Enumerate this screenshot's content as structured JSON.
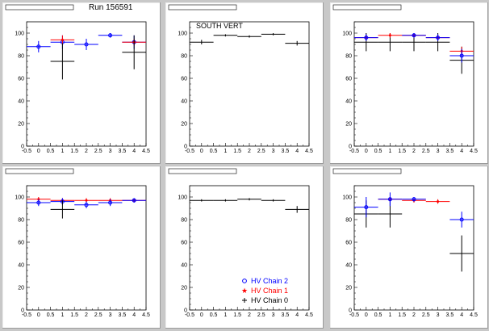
{
  "run_label": "Run 156591",
  "legend": {
    "items": [
      {
        "label": "HV Chain 2",
        "color": "#0000ff",
        "marker": "circle"
      },
      {
        "label": "HV Chain 1",
        "color": "#ff0000",
        "marker": "star"
      },
      {
        "label": "HV Chain 0",
        "color": "#000000",
        "marker": "cross"
      }
    ]
  },
  "chart_data": [
    {
      "type": "scatter",
      "title": "",
      "inner_title": "",
      "x_ticks": [
        "-0.5",
        "0",
        "0.5",
        "1",
        "1.5",
        "2",
        "2.5",
        "3",
        "3.5",
        "4",
        "4.5"
      ],
      "y_ticks": [
        "0",
        "20",
        "40",
        "60",
        "80",
        "100"
      ],
      "xlim": [
        -0.5,
        4.5
      ],
      "ylim": [
        0,
        110
      ],
      "series": [
        {
          "color": "#0000ff",
          "points": [
            {
              "x": 0,
              "y": 88,
              "err": 5
            },
            {
              "x": 1,
              "y": 92,
              "err": 6
            },
            {
              "x": 2,
              "y": 90,
              "err": 5
            },
            {
              "x": 3,
              "y": 98,
              "err": 2
            },
            {
              "x": 4,
              "y": 92,
              "err": 6
            }
          ]
        },
        {
          "color": "#ff0000",
          "points": [
            {
              "x": 1,
              "y": 94,
              "err": 4
            },
            {
              "x": 4,
              "y": 92,
              "err": 3
            }
          ]
        },
        {
          "color": "#000000",
          "points": [
            {
              "x": 1,
              "y": 75,
              "err": 16
            },
            {
              "x": 4,
              "y": 83,
              "err": 15
            }
          ]
        }
      ]
    },
    {
      "type": "scatter",
      "title": "",
      "inner_title": "SOUTH VERT",
      "x_ticks": [
        "-0.5",
        "0",
        "0.5",
        "1",
        "1.5",
        "2",
        "2.5",
        "3",
        "3.5",
        "4",
        "4.5"
      ],
      "y_ticks": [
        "0",
        "20",
        "40",
        "60",
        "80",
        "100"
      ],
      "xlim": [
        -0.5,
        4.5
      ],
      "ylim": [
        0,
        110
      ],
      "series": [
        {
          "color": "#000000",
          "points": [
            {
              "x": 0,
              "y": 92,
              "err": 2
            },
            {
              "x": 1,
              "y": 98,
              "err": 1
            },
            {
              "x": 2,
              "y": 97,
              "err": 1
            },
            {
              "x": 3,
              "y": 99,
              "err": 1
            },
            {
              "x": 4,
              "y": 91,
              "err": 2
            }
          ]
        }
      ]
    },
    {
      "type": "scatter",
      "title": "",
      "inner_title": "",
      "x_ticks": [
        "-0.5",
        "0",
        "0.5",
        "1",
        "1.5",
        "2",
        "2.5",
        "3",
        "3.5",
        "4",
        "4.5"
      ],
      "y_ticks": [
        "0",
        "20",
        "40",
        "60",
        "80",
        "100"
      ],
      "xlim": [
        -0.5,
        4.5
      ],
      "ylim": [
        0,
        110
      ],
      "series": [
        {
          "color": "#000000",
          "points": [
            {
              "x": 0,
              "y": 92,
              "err": 8
            },
            {
              "x": 1,
              "y": 92,
              "err": 8
            },
            {
              "x": 2,
              "y": 92,
              "err": 8
            },
            {
              "x": 3,
              "y": 92,
              "err": 8
            },
            {
              "x": 4,
              "y": 76,
              "err": 12
            }
          ]
        },
        {
          "color": "#ff0000",
          "points": [
            {
              "x": 0,
              "y": 96,
              "err": 2
            },
            {
              "x": 1,
              "y": 98,
              "err": 2
            },
            {
              "x": 2,
              "y": 98,
              "err": 2
            },
            {
              "x": 3,
              "y": 96,
              "err": 2
            },
            {
              "x": 4,
              "y": 84,
              "err": 4
            }
          ]
        },
        {
          "color": "#0000ff",
          "points": [
            {
              "x": 0,
              "y": 96,
              "err": 3
            },
            {
              "x": 2,
              "y": 98,
              "err": 2
            },
            {
              "x": 3,
              "y": 96,
              "err": 3
            },
            {
              "x": 4,
              "y": 80,
              "err": 6
            }
          ]
        }
      ]
    },
    {
      "type": "scatter",
      "title": "",
      "inner_title": "",
      "x_ticks": [
        "-0.5",
        "0",
        "0.5",
        "1",
        "1.5",
        "2",
        "2.5",
        "3",
        "3.5",
        "4",
        "4.5"
      ],
      "y_ticks": [
        "0",
        "20",
        "40",
        "60",
        "80",
        "100"
      ],
      "xlim": [
        -0.5,
        4.5
      ],
      "ylim": [
        0,
        110
      ],
      "series": [
        {
          "color": "#ff0000",
          "points": [
            {
              "x": 0,
              "y": 98,
              "err": 2
            },
            {
              "x": 1,
              "y": 97,
              "err": 2
            },
            {
              "x": 2,
              "y": 97,
              "err": 2
            },
            {
              "x": 3,
              "y": 97,
              "err": 2
            },
            {
              "x": 4,
              "y": 97,
              "err": 1
            }
          ]
        },
        {
          "color": "#0000ff",
          "points": [
            {
              "x": 0,
              "y": 95,
              "err": 3
            },
            {
              "x": 1,
              "y": 96,
              "err": 3
            },
            {
              "x": 2,
              "y": 93,
              "err": 3
            },
            {
              "x": 3,
              "y": 95,
              "err": 3
            },
            {
              "x": 4,
              "y": 97,
              "err": 2
            }
          ]
        },
        {
          "color": "#000000",
          "points": [
            {
              "x": 1,
              "y": 89,
              "err": 8
            }
          ]
        }
      ]
    },
    {
      "type": "scatter",
      "title": "",
      "inner_title": "",
      "x_ticks": [
        "-0.5",
        "0",
        "0.5",
        "1",
        "1.5",
        "2",
        "2.5",
        "3",
        "3.5",
        "4",
        "4.5"
      ],
      "y_ticks": [
        "0",
        "20",
        "40",
        "60",
        "80",
        "100"
      ],
      "xlim": [
        -0.5,
        4.5
      ],
      "ylim": [
        0,
        110
      ],
      "series": [
        {
          "color": "#000000",
          "points": [
            {
              "x": 0,
              "y": 97,
              "err": 1
            },
            {
              "x": 1,
              "y": 97,
              "err": 1
            },
            {
              "x": 2,
              "y": 98,
              "err": 1
            },
            {
              "x": 3,
              "y": 97,
              "err": 1
            },
            {
              "x": 4,
              "y": 89,
              "err": 3
            }
          ]
        }
      ]
    },
    {
      "type": "scatter",
      "title": "",
      "inner_title": "",
      "x_ticks": [
        "-0.5",
        "0",
        "0.5",
        "1",
        "1.5",
        "2",
        "2.5",
        "3",
        "3.5",
        "4",
        "4.5"
      ],
      "y_ticks": [
        "0",
        "20",
        "40",
        "60",
        "80",
        "100"
      ],
      "xlim": [
        -0.5,
        4.5
      ],
      "ylim": [
        0,
        110
      ],
      "series": [
        {
          "color": "#000000",
          "points": [
            {
              "x": 0,
              "y": 85,
              "err": 12
            },
            {
              "x": 1,
              "y": 85,
              "err": 12
            },
            {
              "x": 4,
              "y": 50,
              "err": 16
            }
          ]
        },
        {
          "color": "#ff0000",
          "points": [
            {
              "x": 1,
              "y": 98,
              "err": 2
            },
            {
              "x": 2,
              "y": 97,
              "err": 2
            },
            {
              "x": 3,
              "y": 96,
              "err": 2
            }
          ]
        },
        {
          "color": "#0000ff",
          "points": [
            {
              "x": 0,
              "y": 91,
              "err": 9
            },
            {
              "x": 1,
              "y": 98,
              "err": 6
            },
            {
              "x": 2,
              "y": 98,
              "err": 2
            },
            {
              "x": 4,
              "y": 80,
              "err": 7
            }
          ]
        }
      ]
    }
  ]
}
